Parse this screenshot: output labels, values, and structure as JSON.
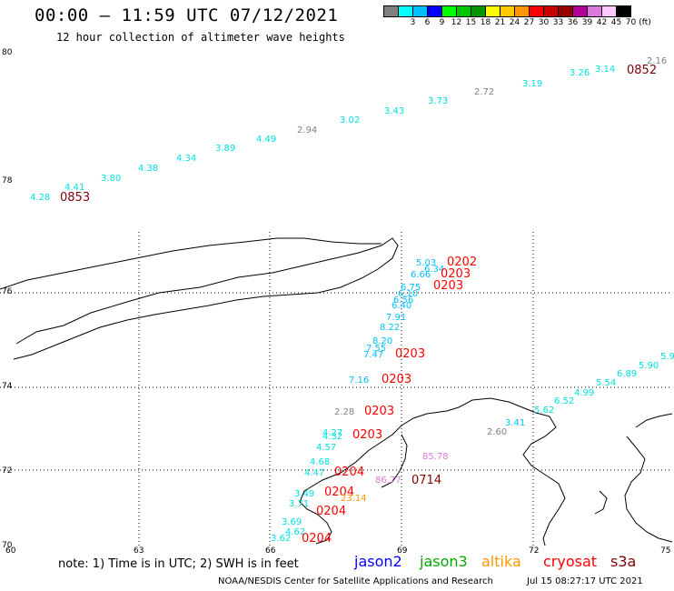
{
  "header": {
    "title": "00:00 – 11:59 UTC 07/12/2021",
    "subtitle": "12 hour collection of altimeter wave heights"
  },
  "scale": {
    "unit": "(ft)",
    "bins": [
      {
        "label": "",
        "color": "#808080"
      },
      {
        "label": "3",
        "color": "#00ffff"
      },
      {
        "label": "6",
        "color": "#00bfff"
      },
      {
        "label": "9",
        "color": "#0000ff"
      },
      {
        "label": "12",
        "color": "#00ff00"
      },
      {
        "label": "15",
        "color": "#00c800"
      },
      {
        "label": "18",
        "color": "#009600"
      },
      {
        "label": "21",
        "color": "#ffff00"
      },
      {
        "label": "24",
        "color": "#ffc800"
      },
      {
        "label": "27",
        "color": "#ff9600"
      },
      {
        "label": "30",
        "color": "#ff0000"
      },
      {
        "label": "33",
        "color": "#c80000"
      },
      {
        "label": "36",
        "color": "#960000"
      },
      {
        "label": "39",
        "color": "#b40096"
      },
      {
        "label": "42",
        "color": "#dc78dc"
      },
      {
        "label": "45",
        "color": "#ffc8ff"
      },
      {
        "label": "70",
        "color": "#000000"
      }
    ]
  },
  "axes": {
    "lat_labels": [
      "80",
      "78",
      "76",
      "74",
      "72",
      "70"
    ],
    "lon_labels": [
      "60",
      "63",
      "66",
      "69",
      "72",
      "75"
    ]
  },
  "observations": [
    {
      "text": "2.16",
      "color": "#808080"
    },
    {
      "text": "0852",
      "color": "#800000"
    },
    {
      "text": "3.14",
      "color": "#00e0e0"
    },
    {
      "text": "3.26",
      "color": "#00e0e0"
    },
    {
      "text": "3.19",
      "color": "#00e0e0"
    },
    {
      "text": "2.72",
      "color": "#808080"
    },
    {
      "text": "3.73",
      "color": "#00e0e0"
    },
    {
      "text": "3.43",
      "color": "#00e0e0"
    },
    {
      "text": "3.02",
      "color": "#00e0e0"
    },
    {
      "text": "2.94",
      "color": "#808080"
    },
    {
      "text": "4.49",
      "color": "#00e0e0"
    },
    {
      "text": "3.89",
      "color": "#00e0e0"
    },
    {
      "text": "4.34",
      "color": "#00e0e0"
    },
    {
      "text": "4.38",
      "color": "#00e0e0"
    },
    {
      "text": "3.80",
      "color": "#00e0e0"
    },
    {
      "text": "4.41",
      "color": "#00e0e0"
    },
    {
      "text": "4.28",
      "color": "#00e0e0"
    },
    {
      "text": "0853",
      "color": "#800000"
    },
    {
      "text": "5.03",
      "color": "#00bfff"
    },
    {
      "text": "0202",
      "color": "#ff0000"
    },
    {
      "text": "6.34",
      "color": "#00bfff"
    },
    {
      "text": "6.66",
      "color": "#00bfff"
    },
    {
      "text": "0203",
      "color": "#ff0000"
    },
    {
      "text": "6.75",
      "color": "#00bfff"
    },
    {
      "text": "0203",
      "color": "#ff0000"
    },
    {
      "text": "6.10",
      "color": "#00bfff"
    },
    {
      "text": "6.56",
      "color": "#00bfff"
    },
    {
      "text": "6.40",
      "color": "#00bfff"
    },
    {
      "text": "7.91",
      "color": "#00bfff"
    },
    {
      "text": "8.22",
      "color": "#00bfff"
    },
    {
      "text": "8.20",
      "color": "#00bfff"
    },
    {
      "text": "7.55",
      "color": "#00bfff"
    },
    {
      "text": "7.47",
      "color": "#00bfff"
    },
    {
      "text": "0203",
      "color": "#ff0000"
    },
    {
      "text": "7.16",
      "color": "#00bfff"
    },
    {
      "text": "0203",
      "color": "#ff0000"
    },
    {
      "text": "2.28",
      "color": "#808080"
    },
    {
      "text": "0203",
      "color": "#ff0000"
    },
    {
      "text": "4.27",
      "color": "#00e0e0"
    },
    {
      "text": "4.32",
      "color": "#00e0e0"
    },
    {
      "text": "0203",
      "color": "#ff0000"
    },
    {
      "text": "4.57",
      "color": "#00e0e0"
    },
    {
      "text": "4.68",
      "color": "#00e0e0"
    },
    {
      "text": "4.47",
      "color": "#00e0e0"
    },
    {
      "text": "0204",
      "color": "#ff0000"
    },
    {
      "text": "3.49",
      "color": "#00e0e0"
    },
    {
      "text": "0204",
      "color": "#ff0000"
    },
    {
      "text": "3.71",
      "color": "#00e0e0"
    },
    {
      "text": "0204",
      "color": "#ff0000"
    },
    {
      "text": "3.69",
      "color": "#00e0e0"
    },
    {
      "text": "4.62",
      "color": "#00e0e0"
    },
    {
      "text": "3.62",
      "color": "#00e0e0"
    },
    {
      "text": "0204",
      "color": "#ff0000"
    },
    {
      "text": "23.14",
      "color": "#ff9600"
    },
    {
      "text": "85.78",
      "color": "#dc78dc"
    },
    {
      "text": "86.77",
      "color": "#dc78dc"
    },
    {
      "text": "0714",
      "color": "#800000"
    },
    {
      "text": "2.60",
      "color": "#808080"
    },
    {
      "text": "3.41",
      "color": "#00bfff"
    },
    {
      "text": "5.62",
      "color": "#00e0e0"
    },
    {
      "text": "6.52",
      "color": "#00e0e0"
    },
    {
      "text": "4.99",
      "color": "#00e0e0"
    },
    {
      "text": "5.54",
      "color": "#00e0e0"
    },
    {
      "text": "6.89",
      "color": "#00e0e0"
    },
    {
      "text": "5.90",
      "color": "#00e0e0"
    },
    {
      "text": "5.9",
      "color": "#00e0e0"
    }
  ],
  "footer": {
    "note": "note: 1) Time is in UTC; 2) SWH is in feet",
    "satellites": [
      {
        "name": "jason2",
        "color": "#0000ff"
      },
      {
        "name": "jason3",
        "color": "#00aa00"
      },
      {
        "name": "altika",
        "color": "#ff9600"
      },
      {
        "name": "cryosat",
        "color": "#ff0000"
      },
      {
        "name": "s3a",
        "color": "#800000"
      }
    ],
    "credit": "NOAA/NESDIS Center for Satellite Applications and Research",
    "timestamp": "Jul 15 08:27:17 UTC 2021"
  }
}
